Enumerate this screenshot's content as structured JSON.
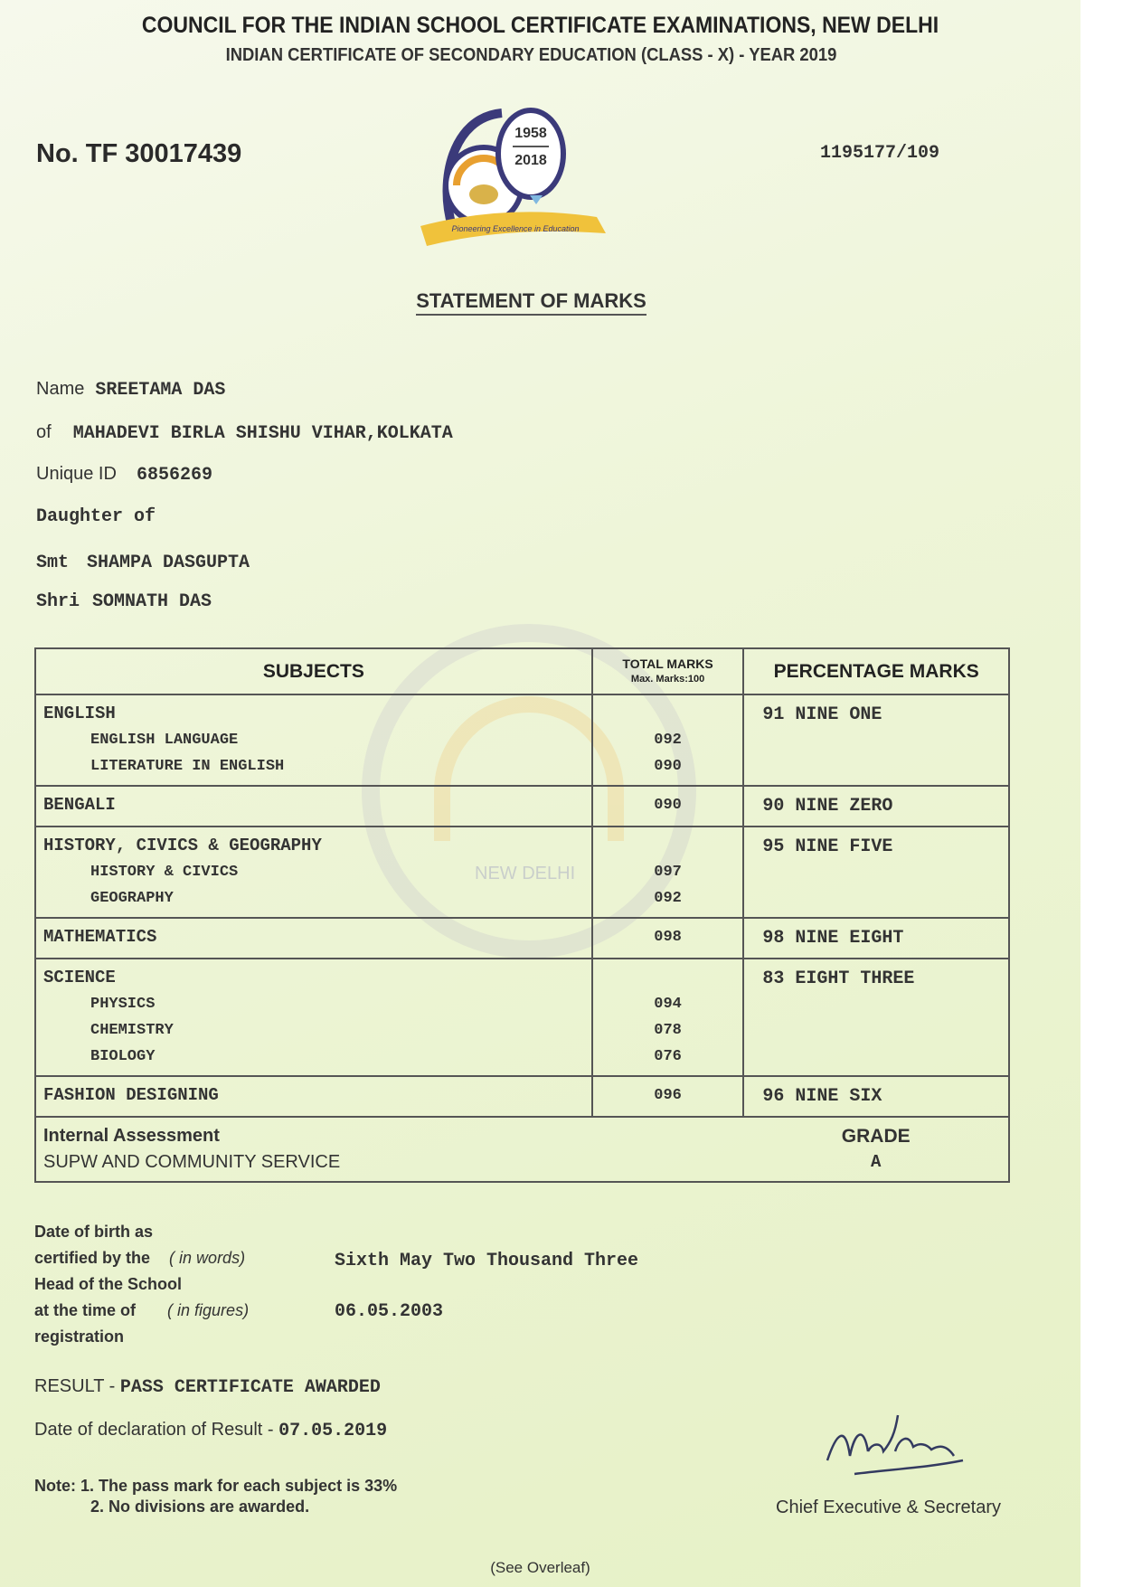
{
  "header": {
    "title": "COUNCIL FOR THE INDIAN SCHOOL CERTIFICATE EXAMINATIONS, NEW DELHI",
    "subtitle": "INDIAN CERTIFICATE OF SECONDARY EDUCATION (CLASS - X) - YEAR 2019",
    "certificate_no": "No. TF 30017439",
    "reference": "1195177/109"
  },
  "logo": {
    "years_top": "1958",
    "years_bottom": "2018",
    "tagline": "Pioneering Excellence in Education"
  },
  "statement_title": "STATEMENT OF MARKS",
  "student": {
    "name_label": "Name",
    "name": "SREETAMA DAS",
    "of_label": "of",
    "school": "MAHADEVI BIRLA SHISHU VIHAR,KOLKATA",
    "uid_label": "Unique ID",
    "uid": "6856269",
    "relation": "Daughter of",
    "mother_label": "Smt",
    "mother": "SHAMPA DASGUPTA",
    "father_label": "Shri",
    "father": "SOMNATH DAS"
  },
  "table": {
    "headers": {
      "subjects": "SUBJECTS",
      "total": "TOTAL MARKS",
      "max": "Max. Marks:100",
      "pct": "PERCENTAGE MARKS"
    },
    "rows": [
      {
        "subject": "ENGLISH",
        "parts": [
          {
            "name": "ENGLISH LANGUAGE",
            "marks": "092"
          },
          {
            "name": "LITERATURE IN ENGLISH",
            "marks": "090"
          }
        ],
        "pct": "91 NINE ONE"
      },
      {
        "subject": "BENGALI",
        "marks": "090",
        "pct": "90 NINE ZERO"
      },
      {
        "subject": "HISTORY, CIVICS & GEOGRAPHY",
        "parts": [
          {
            "name": "HISTORY & CIVICS",
            "marks": "097"
          },
          {
            "name": "GEOGRAPHY",
            "marks": "092"
          }
        ],
        "pct": "95 NINE FIVE"
      },
      {
        "subject": "MATHEMATICS",
        "marks": "098",
        "pct": "98 NINE EIGHT"
      },
      {
        "subject": "SCIENCE",
        "parts": [
          {
            "name": "PHYSICS",
            "marks": "094"
          },
          {
            "name": "CHEMISTRY",
            "marks": "078"
          },
          {
            "name": "BIOLOGY",
            "marks": "076"
          }
        ],
        "pct": "83 EIGHT THREE"
      },
      {
        "subject": "FASHION DESIGNING",
        "marks": "096",
        "pct": "96 NINE SIX"
      }
    ],
    "internal": {
      "title": "Internal Assessment",
      "item": "SUPW AND COMMUNITY SERVICE",
      "grade_label": "GRADE",
      "grade": "A"
    }
  },
  "watermark": {
    "text": "NEW DELHI"
  },
  "dob": {
    "l1": "Date of birth as",
    "l2": "certified by the",
    "l3": "Head of the School",
    "l4": "at the time of",
    "l5": "registration",
    "words_label": "( in words)",
    "figures_label": "( in figures)",
    "words": "Sixth May Two Thousand Three",
    "figures": "06.05.2003"
  },
  "result": {
    "label": "RESULT -",
    "value": "PASS CERTIFICATE AWARDED",
    "decl_label": "Date of declaration of Result -",
    "decl_date": "07.05.2019"
  },
  "note": {
    "label": "Note:",
    "n1": "1. The pass mark for each subject is 33%",
    "n2": "2. No divisions are awarded."
  },
  "signatory": "Chief Executive & Secretary",
  "overleaf": "(See Overleaf)"
}
